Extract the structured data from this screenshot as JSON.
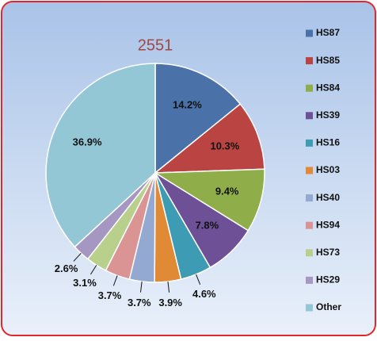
{
  "chart_data": {
    "type": "pie",
    "title": "2551",
    "categories": [
      "HS87",
      "HS85",
      "HS84",
      "HS39",
      "HS16",
      "HS03",
      "HS40",
      "HS94",
      "HS73",
      "HS29",
      "Other"
    ],
    "values": [
      14.2,
      10.3,
      9.4,
      7.8,
      4.6,
      3.9,
      3.7,
      3.7,
      3.1,
      2.6,
      36.9
    ],
    "value_labels": [
      "14.2%",
      "10.3%",
      "9.4%",
      "7.8%",
      "4.6%",
      "3.9%",
      "3.7%",
      "3.7%",
      "3.1%",
      "2.6%",
      "36.9%"
    ],
    "colors": [
      "#4a72a8",
      "#b94441",
      "#8fae4a",
      "#6e5096",
      "#3d9cb3",
      "#e08a35",
      "#94a9d1",
      "#d99493",
      "#b9cf8c",
      "#a597c2",
      "#93c7d6"
    ],
    "legend": "right"
  }
}
